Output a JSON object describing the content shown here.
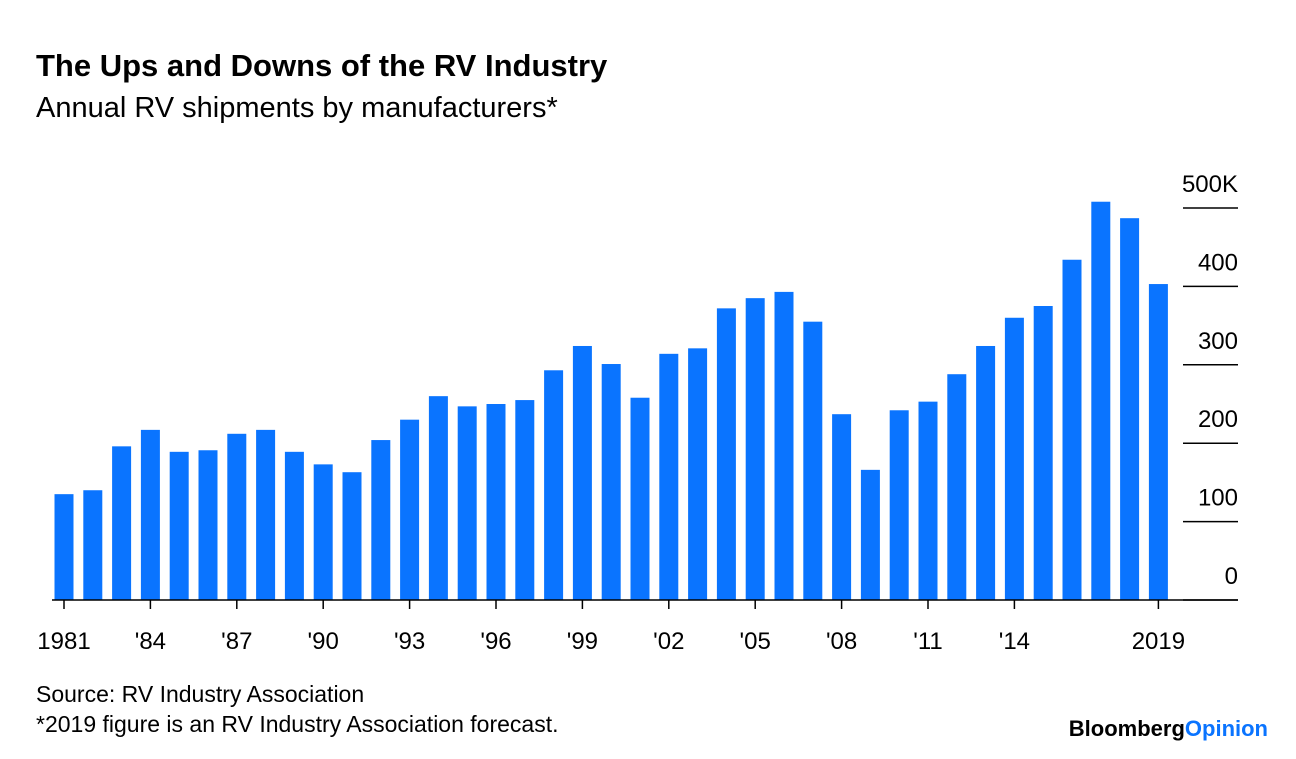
{
  "chart_data": {
    "type": "bar",
    "title": "The Ups and Downs of the RV Industry",
    "subtitle": "Annual RV shipments by manufacturers*",
    "categories": [
      "1981",
      null,
      null,
      "'84",
      null,
      null,
      "'87",
      null,
      null,
      "'90",
      null,
      null,
      "'93",
      null,
      null,
      "'96",
      null,
      null,
      "'99",
      null,
      null,
      "'02",
      null,
      null,
      "'05",
      null,
      null,
      "'08",
      null,
      null,
      "'11",
      null,
      null,
      "'14",
      null,
      null,
      null,
      null,
      "2019"
    ],
    "values": [
      135,
      140,
      196,
      217,
      189,
      191,
      212,
      217,
      189,
      173,
      163,
      204,
      230,
      260,
      247,
      250,
      255,
      293,
      324,
      301,
      258,
      314,
      321,
      372,
      385,
      393,
      355,
      237,
      166,
      242,
      253,
      288,
      324,
      360,
      375,
      434,
      508,
      487,
      403
    ],
    "color": "#0a74ff",
    "ylim": [
      0,
      500
    ],
    "yticks": [
      0,
      100,
      200,
      300,
      400,
      {
        "value": 500,
        "label": "500K"
      }
    ],
    "source": "Source: RV Industry Association",
    "note": "*2019 figure is an RV Industry Association forecast.",
    "brand": "Bloomberg",
    "brand_suffix": "Opinion"
  }
}
